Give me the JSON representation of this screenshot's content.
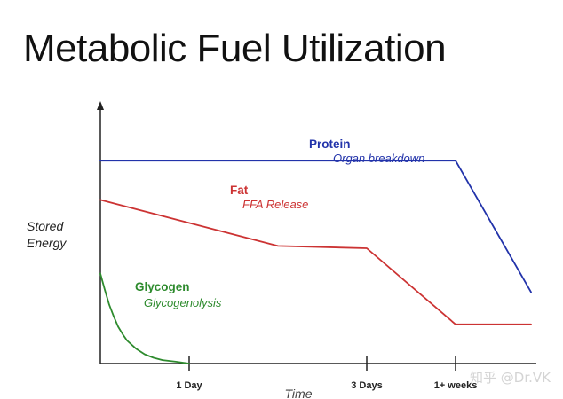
{
  "page": {
    "title": "Metabolic Fuel Utilization",
    "watermark": "知乎 @Dr.VK"
  },
  "chart_data": {
    "type": "line",
    "title": "Metabolic Fuel Utilization",
    "ylabel": [
      "Stored",
      "Energy"
    ],
    "xlabel": "Time",
    "x_ticks": [
      {
        "label": "1 Day",
        "x": 1
      },
      {
        "label": "3 Days",
        "x": 3
      },
      {
        "label": "1+ weeks",
        "x": 4
      }
    ],
    "xlim": [
      0,
      4.85
    ],
    "ylim": [
      0,
      100
    ],
    "grid": false,
    "series": [
      {
        "name": "Protein",
        "subtitle": "Organ breakdown",
        "color": "#2233aa",
        "points": [
          [
            0,
            88
          ],
          [
            4,
            88
          ],
          [
            4.85,
            31
          ]
        ]
      },
      {
        "name": "Fat",
        "subtitle": "FFA Release",
        "color": "#cc3333",
        "points": [
          [
            0,
            71
          ],
          [
            2,
            51
          ],
          [
            3,
            50
          ],
          [
            4,
            17
          ],
          [
            4.85,
            17
          ]
        ]
      },
      {
        "name": "Glycogen",
        "subtitle": "Glycogenolysis",
        "color": "#2e8b2e",
        "points": [
          [
            0,
            39
          ],
          [
            0.05,
            32
          ],
          [
            0.1,
            25.5
          ],
          [
            0.15,
            20.5
          ],
          [
            0.2,
            16
          ],
          [
            0.25,
            12.8
          ],
          [
            0.3,
            10
          ],
          [
            0.4,
            6.5
          ],
          [
            0.5,
            4
          ],
          [
            0.6,
            2.5
          ],
          [
            0.7,
            1.5
          ],
          [
            0.85,
            0.8
          ],
          [
            1,
            0
          ]
        ]
      }
    ]
  }
}
